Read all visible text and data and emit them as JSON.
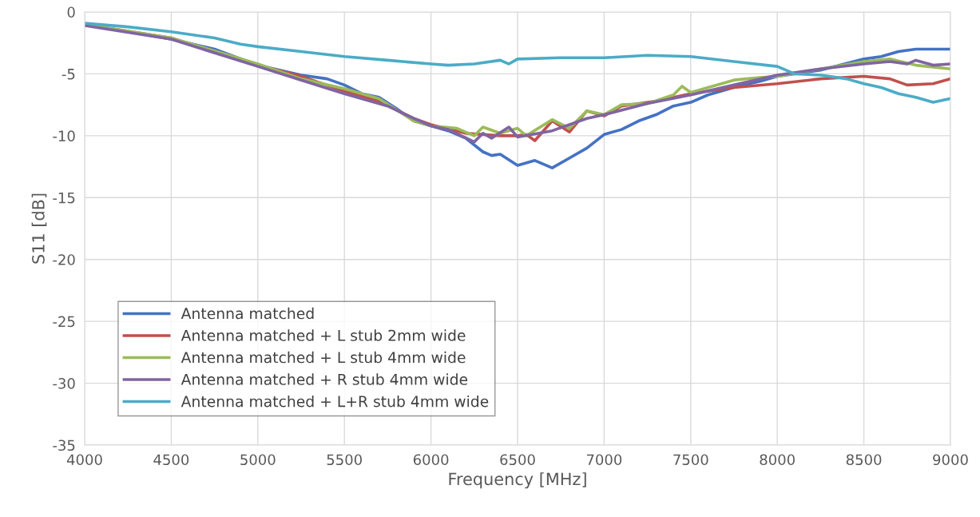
{
  "chart_data": {
    "type": "line",
    "xlabel": "Frequency [MHz]",
    "ylabel": "S11 [dB]",
    "xlim": [
      4000,
      9000
    ],
    "ylim": [
      -35,
      0
    ],
    "xticks": [
      4000,
      4500,
      5000,
      5500,
      6000,
      6500,
      7000,
      7500,
      8000,
      8500,
      9000
    ],
    "yticks": [
      -35,
      -30,
      -25,
      -20,
      -15,
      -10,
      -5,
      0
    ],
    "grid": true,
    "legend": "bottom left",
    "marker": "none",
    "line_style": "solid",
    "series": [
      {
        "name": "Antenna matched",
        "color": "#4472c4",
        "x": [
          4000,
          4250,
          4500,
          4750,
          5000,
          5250,
          5400,
          5500,
          5600,
          5700,
          5800,
          5900,
          6000,
          6100,
          6200,
          6300,
          6350,
          6400,
          6500,
          6600,
          6700,
          6800,
          6900,
          7000,
          7100,
          7200,
          7300,
          7400,
          7500,
          7600,
          7700,
          7800,
          7900,
          8000,
          8250,
          8500,
          8600,
          8700,
          8800,
          9000
        ],
        "values": [
          -1.0,
          -1.6,
          -2.2,
          -3.0,
          -4.3,
          -5.1,
          -5.4,
          -5.9,
          -6.6,
          -6.9,
          -7.8,
          -8.8,
          -9.2,
          -9.6,
          -10.2,
          -11.3,
          -11.6,
          -11.5,
          -12.4,
          -12.0,
          -12.6,
          -11.8,
          -11.0,
          -9.9,
          -9.5,
          -8.8,
          -8.3,
          -7.6,
          -7.3,
          -6.7,
          -6.3,
          -5.9,
          -5.6,
          -5.2,
          -4.7,
          -3.8,
          -3.6,
          -3.2,
          -3.0,
          -3.0
        ]
      },
      {
        "name": "Antenna matched + L stub 2mm wide",
        "color": "#c0504d",
        "x": [
          4000,
          4500,
          5000,
          5250,
          5500,
          5700,
          5900,
          6000,
          6200,
          6400,
          6500,
          6550,
          6600,
          6700,
          6800,
          6900,
          7000,
          7100,
          7300,
          7500,
          7750,
          8000,
          8250,
          8500,
          8650,
          8750,
          8900,
          9000
        ],
        "values": [
          -1.0,
          -2.1,
          -4.3,
          -5.2,
          -6.4,
          -7.2,
          -8.6,
          -9.1,
          -9.8,
          -10.0,
          -10.0,
          -9.9,
          -10.4,
          -8.8,
          -9.7,
          -8.0,
          -8.4,
          -7.6,
          -7.2,
          -6.6,
          -6.1,
          -5.8,
          -5.4,
          -5.2,
          -5.4,
          -5.9,
          -5.8,
          -5.4
        ]
      },
      {
        "name": "Antenna matched + L stub 4mm wide",
        "color": "#9bbb59",
        "x": [
          4000,
          4500,
          5000,
          5250,
          5500,
          5700,
          5900,
          6000,
          6150,
          6250,
          6300,
          6400,
          6500,
          6550,
          6700,
          6800,
          6900,
          7000,
          7100,
          7250,
          7400,
          7450,
          7500,
          7750,
          7900,
          8000,
          8250,
          8500,
          8650,
          8800,
          9000
        ],
        "values": [
          -1.0,
          -2.1,
          -4.2,
          -5.4,
          -6.2,
          -7.0,
          -8.8,
          -9.2,
          -9.4,
          -10.0,
          -9.3,
          -9.8,
          -9.4,
          -10.0,
          -8.7,
          -9.4,
          -8.0,
          -8.3,
          -7.5,
          -7.4,
          -6.7,
          -6.0,
          -6.5,
          -5.5,
          -5.3,
          -5.2,
          -4.6,
          -4.0,
          -3.8,
          -4.3,
          -4.6
        ]
      },
      {
        "name": "Antenna matched + R stub 4mm wide",
        "color": "#8064a2",
        "x": [
          4000,
          4500,
          5000,
          5250,
          5500,
          5750,
          5900,
          6000,
          6100,
          6250,
          6300,
          6350,
          6450,
          6500,
          6700,
          6900,
          7000,
          7250,
          7500,
          7750,
          8000,
          8250,
          8500,
          8650,
          8750,
          8800,
          8900,
          9000
        ],
        "values": [
          -1.1,
          -2.2,
          -4.4,
          -5.5,
          -6.6,
          -7.6,
          -8.6,
          -9.2,
          -9.5,
          -10.5,
          -9.8,
          -10.2,
          -9.3,
          -10.1,
          -9.6,
          -8.6,
          -8.3,
          -7.4,
          -6.7,
          -5.9,
          -5.1,
          -4.6,
          -4.2,
          -4.0,
          -4.2,
          -3.9,
          -4.3,
          -4.2
        ]
      },
      {
        "name": "Antenna matched + L+R stub 4mm wide",
        "color": "#4bacc6",
        "x": [
          4000,
          4250,
          4500,
          4750,
          4900,
          5000,
          5250,
          5500,
          5750,
          6000,
          6100,
          6250,
          6400,
          6450,
          6500,
          6750,
          7000,
          7250,
          7500,
          7750,
          8000,
          8100,
          8250,
          8400,
          8500,
          8600,
          8700,
          8800,
          8900,
          9000
        ],
        "values": [
          -0.9,
          -1.2,
          -1.6,
          -2.1,
          -2.6,
          -2.8,
          -3.2,
          -3.6,
          -3.9,
          -4.2,
          -4.3,
          -4.2,
          -3.9,
          -4.2,
          -3.8,
          -3.7,
          -3.7,
          -3.5,
          -3.6,
          -4.0,
          -4.4,
          -5.0,
          -5.1,
          -5.4,
          -5.8,
          -6.1,
          -6.6,
          -6.9,
          -7.3,
          -7.0
        ]
      }
    ]
  }
}
